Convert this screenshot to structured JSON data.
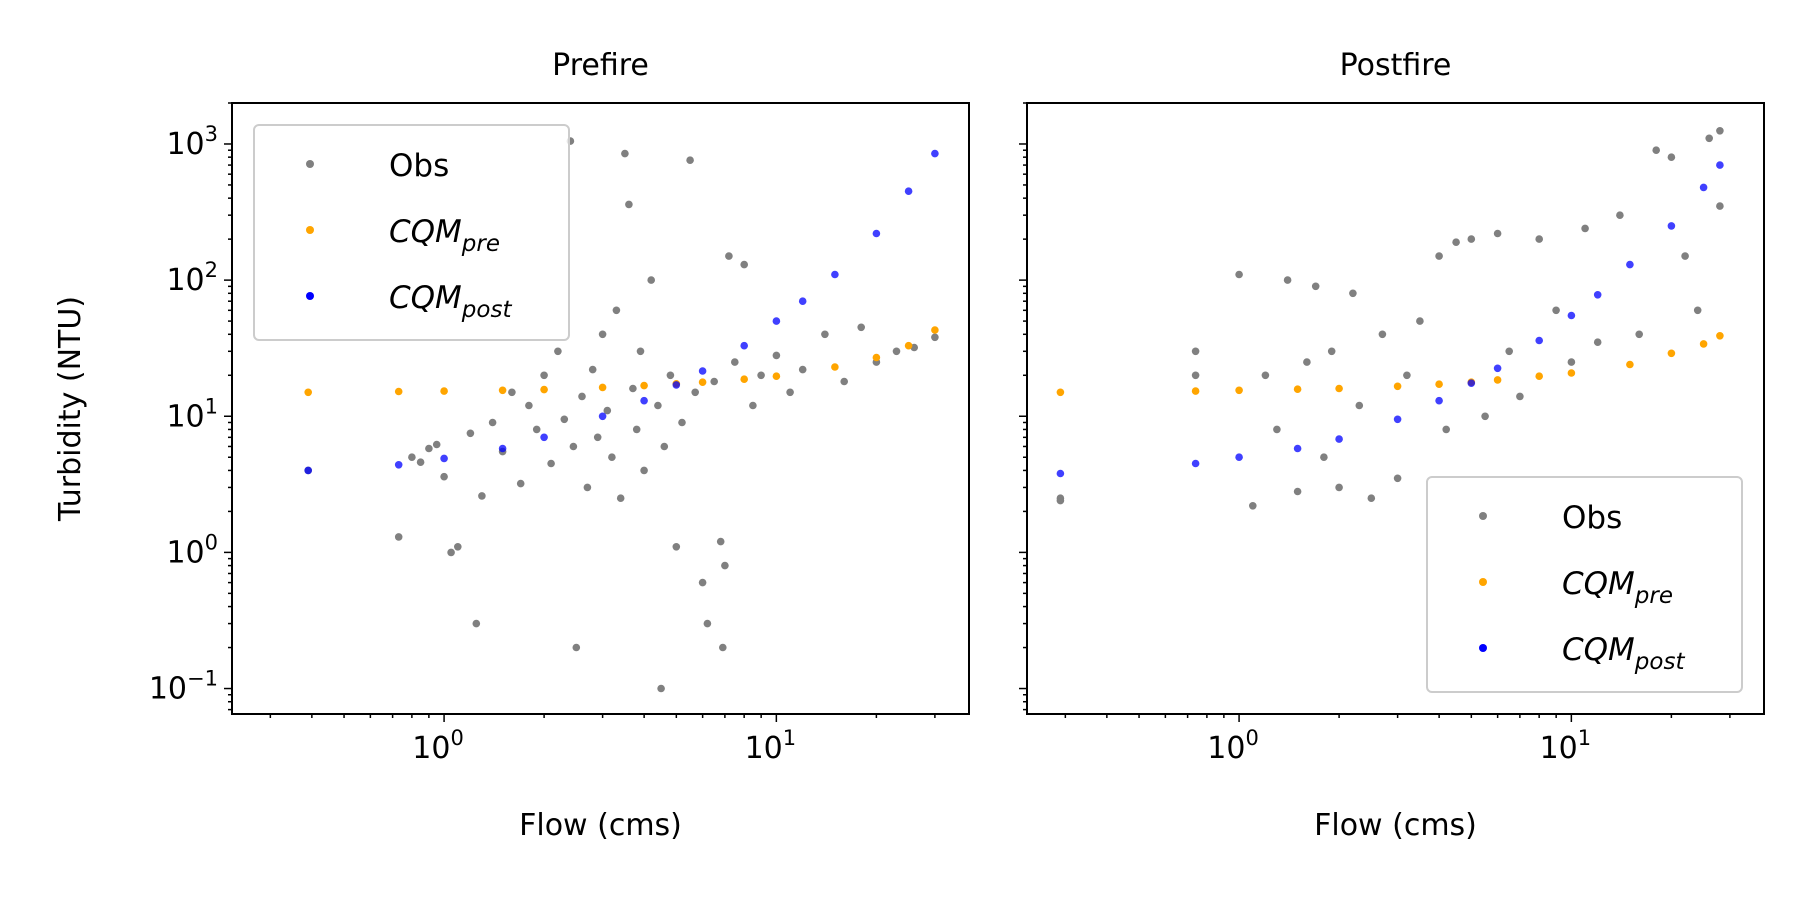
{
  "chart_data": [
    {
      "type": "scatter",
      "title": "Prefire",
      "xlabel": "Flow (cms)",
      "ylabel": "Turbidity (NTU)",
      "x_scale": "log",
      "y_scale": "log",
      "xlim": [
        0.23,
        38
      ],
      "ylim": [
        0.065,
        2000
      ],
      "x_ticks": [
        {
          "base": "10",
          "exp": "0"
        },
        {
          "base": "10",
          "exp": "1"
        }
      ],
      "y_ticks": [
        {
          "base": "10",
          "exp": "3"
        },
        {
          "base": "10",
          "exp": "2"
        },
        {
          "base": "10",
          "exp": "1"
        },
        {
          "base": "10",
          "exp": "0"
        },
        {
          "base": "10",
          "exp": "−1"
        }
      ],
      "legend": {
        "position": "upper-left"
      },
      "series": [
        {
          "name": "Obs",
          "color": "#808080",
          "points": [
            [
              0.39,
              4.0
            ],
            [
              0.73,
              1.3
            ],
            [
              0.8,
              5.0
            ],
            [
              0.85,
              4.6
            ],
            [
              0.9,
              5.8
            ],
            [
              0.95,
              6.2
            ],
            [
              1.0,
              3.6
            ],
            [
              1.05,
              1.0
            ],
            [
              1.1,
              1.1
            ],
            [
              1.2,
              7.5
            ],
            [
              1.25,
              0.3
            ],
            [
              1.3,
              2.6
            ],
            [
              1.4,
              9.0
            ],
            [
              1.5,
              5.5
            ],
            [
              1.6,
              15.0
            ],
            [
              1.7,
              3.2
            ],
            [
              1.8,
              12.0
            ],
            [
              1.9,
              8.0
            ],
            [
              2.0,
              20.0
            ],
            [
              2.1,
              4.5
            ],
            [
              2.2,
              30.0
            ],
            [
              2.3,
              9.5
            ],
            [
              2.4,
              1050.0
            ],
            [
              2.45,
              6.0
            ],
            [
              2.5,
              0.2
            ],
            [
              2.6,
              14.0
            ],
            [
              2.7,
              3.0
            ],
            [
              2.8,
              22.0
            ],
            [
              2.9,
              7.0
            ],
            [
              3.0,
              40.0
            ],
            [
              3.1,
              11.0
            ],
            [
              3.2,
              5.0
            ],
            [
              3.3,
              60.0
            ],
            [
              3.4,
              2.5
            ],
            [
              3.5,
              850.0
            ],
            [
              3.6,
              360.0
            ],
            [
              3.7,
              16.0
            ],
            [
              3.8,
              8.0
            ],
            [
              3.9,
              30.0
            ],
            [
              4.0,
              4.0
            ],
            [
              4.2,
              100.0
            ],
            [
              4.4,
              12.0
            ],
            [
              4.5,
              0.1
            ],
            [
              4.6,
              6.0
            ],
            [
              4.8,
              20.0
            ],
            [
              5.0,
              1.1
            ],
            [
              5.2,
              9.0
            ],
            [
              5.5,
              760.0
            ],
            [
              5.7,
              15.0
            ],
            [
              6.0,
              0.6
            ],
            [
              6.2,
              0.3
            ],
            [
              6.5,
              18.0
            ],
            [
              6.8,
              1.2
            ],
            [
              6.9,
              0.2
            ],
            [
              7.0,
              0.8
            ],
            [
              7.2,
              150.0
            ],
            [
              7.5,
              25.0
            ],
            [
              8.0,
              130.0
            ],
            [
              8.5,
              12.0
            ],
            [
              9.0,
              20.0
            ],
            [
              10.0,
              28.0
            ],
            [
              11.0,
              15.0
            ],
            [
              12.0,
              22.0
            ],
            [
              14.0,
              40.0
            ],
            [
              16.0,
              18.0
            ],
            [
              18.0,
              45.0
            ],
            [
              20.0,
              25.0
            ],
            [
              23.0,
              30.0
            ],
            [
              26.0,
              32.0
            ],
            [
              30.0,
              38.0
            ]
          ]
        },
        {
          "name": "CQM",
          "name_subscript": "pre",
          "color": "#FFA500",
          "points": [
            [
              0.39,
              15.0
            ],
            [
              0.73,
              15.2
            ],
            [
              1.0,
              15.3
            ],
            [
              1.5,
              15.5
            ],
            [
              2.0,
              15.7
            ],
            [
              3.0,
              16.3
            ],
            [
              4.0,
              16.8
            ],
            [
              5.0,
              17.3
            ],
            [
              6.0,
              17.8
            ],
            [
              8.0,
              18.7
            ],
            [
              10.0,
              19.7
            ],
            [
              15.0,
              23.0
            ],
            [
              20.0,
              27.0
            ],
            [
              25.0,
              33.0
            ],
            [
              30.0,
              43.0
            ]
          ]
        },
        {
          "name": "CQM",
          "name_subscript": "post",
          "color": "#0000FF",
          "points": [
            [
              0.39,
              4.0
            ],
            [
              0.73,
              4.4
            ],
            [
              1.0,
              4.9
            ],
            [
              1.5,
              5.8
            ],
            [
              2.0,
              7.0
            ],
            [
              3.0,
              10.0
            ],
            [
              4.0,
              13.0
            ],
            [
              5.0,
              17.0
            ],
            [
              6.0,
              21.5
            ],
            [
              8.0,
              33.0
            ],
            [
              10.0,
              50.0
            ],
            [
              12.0,
              70.0
            ],
            [
              15.0,
              110.0
            ],
            [
              20.0,
              220.0
            ],
            [
              25.0,
              450.0
            ],
            [
              30.0,
              850.0
            ]
          ]
        }
      ]
    },
    {
      "type": "scatter",
      "title": "Postfire",
      "xlabel": "Flow (cms)",
      "ylabel": "",
      "x_scale": "log",
      "y_scale": "log",
      "xlim": [
        0.23,
        38
      ],
      "ylim": [
        0.065,
        2000
      ],
      "x_ticks": [
        {
          "base": "10",
          "exp": "0"
        },
        {
          "base": "10",
          "exp": "1"
        }
      ],
      "legend": {
        "position": "lower-right"
      },
      "series": [
        {
          "name": "Obs",
          "color": "#808080",
          "points": [
            [
              0.29,
              2.5
            ],
            [
              0.29,
              2.4
            ],
            [
              0.74,
              30.0
            ],
            [
              0.74,
              20.0
            ],
            [
              1.0,
              110.0
            ],
            [
              1.1,
              2.2
            ],
            [
              1.2,
              20.0
            ],
            [
              1.3,
              8.0
            ],
            [
              1.4,
              100.0
            ],
            [
              1.5,
              2.8
            ],
            [
              1.6,
              25.0
            ],
            [
              1.7,
              90.0
            ],
            [
              1.8,
              5.0
            ],
            [
              1.9,
              30.0
            ],
            [
              2.0,
              3.0
            ],
            [
              2.2,
              80.0
            ],
            [
              2.3,
              12.0
            ],
            [
              2.5,
              2.5
            ],
            [
              2.7,
              40.0
            ],
            [
              3.0,
              3.5
            ],
            [
              3.2,
              20.0
            ],
            [
              3.5,
              50.0
            ],
            [
              4.0,
              150.0
            ],
            [
              4.2,
              8.0
            ],
            [
              4.5,
              190.0
            ],
            [
              5.0,
              200.0
            ],
            [
              5.5,
              10.0
            ],
            [
              6.0,
              220.0
            ],
            [
              6.5,
              30.0
            ],
            [
              7.0,
              14.0
            ],
            [
              8.0,
              200.0
            ],
            [
              9.0,
              60.0
            ],
            [
              10.0,
              25.0
            ],
            [
              11.0,
              240.0
            ],
            [
              12.0,
              35.0
            ],
            [
              14.0,
              300.0
            ],
            [
              16.0,
              40.0
            ],
            [
              18.0,
              900.0
            ],
            [
              20.0,
              800.0
            ],
            [
              22.0,
              150.0
            ],
            [
              24.0,
              60.0
            ],
            [
              26.0,
              1100.0
            ],
            [
              28.0,
              1250.0
            ],
            [
              28.0,
              350.0
            ]
          ]
        },
        {
          "name": "CQM",
          "name_subscript": "pre",
          "color": "#FFA500",
          "points": [
            [
              0.29,
              15.0
            ],
            [
              0.74,
              15.3
            ],
            [
              1.0,
              15.5
            ],
            [
              1.5,
              15.8
            ],
            [
              2.0,
              16.0
            ],
            [
              3.0,
              16.6
            ],
            [
              4.0,
              17.2
            ],
            [
              5.0,
              17.8
            ],
            [
              6.0,
              18.5
            ],
            [
              8.0,
              19.7
            ],
            [
              10.0,
              20.8
            ],
            [
              15.0,
              24.0
            ],
            [
              20.0,
              29.0
            ],
            [
              25.0,
              34.0
            ],
            [
              28.0,
              39.0
            ]
          ]
        },
        {
          "name": "CQM",
          "name_subscript": "post",
          "color": "#0000FF",
          "points": [
            [
              0.29,
              3.8
            ],
            [
              0.74,
              4.5
            ],
            [
              1.0,
              5.0
            ],
            [
              1.5,
              5.8
            ],
            [
              2.0,
              6.8
            ],
            [
              3.0,
              9.5
            ],
            [
              4.0,
              13.0
            ],
            [
              5.0,
              17.5
            ],
            [
              6.0,
              22.5
            ],
            [
              8.0,
              36.0
            ],
            [
              10.0,
              55.0
            ],
            [
              12.0,
              78.0
            ],
            [
              15.0,
              130.0
            ],
            [
              20.0,
              250.0
            ],
            [
              25.0,
              480.0
            ],
            [
              28.0,
              700.0
            ]
          ]
        }
      ]
    }
  ]
}
